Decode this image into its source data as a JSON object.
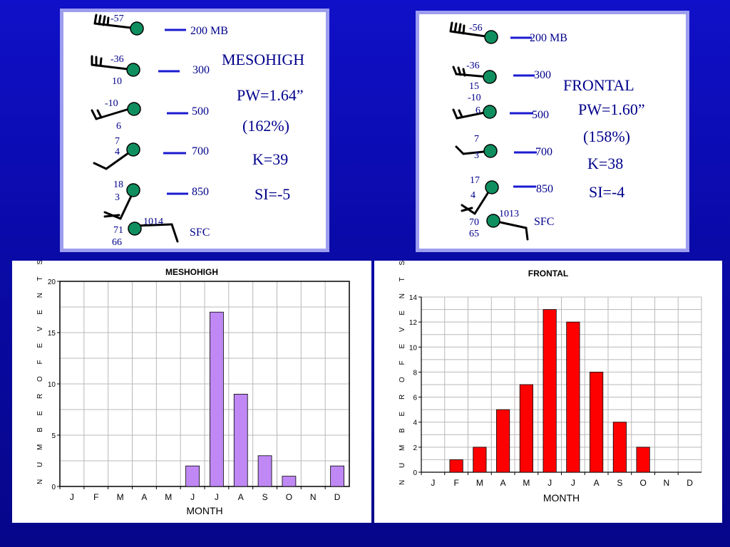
{
  "mesohigh_panel": {
    "title": "MESOHIGH",
    "pw": "PW=1.64”",
    "pct": "(162%)",
    "k": "K=39",
    "si": "SI=-5",
    "levels": [
      "200 MB",
      "300",
      "500",
      "700",
      "850",
      "SFC"
    ],
    "station": [
      {
        "top": "-57",
        "bottom": ""
      },
      {
        "top": "-36",
        "bottom": "10"
      },
      {
        "top": "-10",
        "bottom": "6"
      },
      {
        "top": "7",
        "bottom": "4"
      },
      {
        "top": "18",
        "bottom": "3"
      },
      {
        "top": "71",
        "bottom": "66"
      }
    ],
    "pressure": "1014"
  },
  "frontal_panel": {
    "title": "FRONTAL",
    "pw": "PW=1.60”",
    "pct": "(158%)",
    "k": "K=38",
    "si": "SI=-4",
    "levels": [
      "200 MB",
      "300",
      "500",
      "700",
      "850",
      "SFC"
    ],
    "station": [
      {
        "top": "-56",
        "bottom": ""
      },
      {
        "top": "-36",
        "bottom": "15"
      },
      {
        "top": "-10",
        "bottom": "6"
      },
      {
        "top": "7",
        "bottom": "3"
      },
      {
        "top": "17",
        "bottom": "4"
      },
      {
        "top": "70",
        "bottom": "65"
      }
    ],
    "pressure": "1013"
  },
  "colors": {
    "background": "#0a0aa8",
    "panel_border": "#9d9df0",
    "station_dot": "#0f8f5f",
    "text": "#00008b",
    "mesohigh_bar": "#bf88f5",
    "frontal_bar": "#ff0000"
  },
  "chart_data": [
    {
      "type": "bar",
      "title": "MESHOHIGH",
      "categories": [
        "J",
        "F",
        "M",
        "A",
        "M",
        "J",
        "J",
        "A",
        "S",
        "O",
        "N",
        "D"
      ],
      "values": [
        0,
        0,
        0,
        0,
        0,
        2,
        17,
        9,
        3,
        1,
        0,
        2
      ],
      "xlabel": "MONTH",
      "ylabel": "N U M B E R  O F  E V E N T S",
      "ylim": [
        0,
        20
      ],
      "yticks": [
        "0",
        "5",
        "10",
        "15",
        "20"
      ],
      "grid": true
    },
    {
      "type": "bar",
      "title": "FRONTAL",
      "categories": [
        "J",
        "F",
        "M",
        "A",
        "M",
        "J",
        "J",
        "A",
        "S",
        "O",
        "N",
        "D"
      ],
      "values": [
        0,
        1,
        2,
        5,
        7,
        13,
        12,
        8,
        4,
        2,
        0,
        0
      ],
      "xlabel": "MONTH",
      "ylabel": "N U M B E R  O F  E V E N T S",
      "ylim": [
        0,
        14
      ],
      "yticks": [
        "0",
        "2",
        "4",
        "6",
        "8",
        "10",
        "12",
        "14"
      ],
      "grid": true
    }
  ]
}
